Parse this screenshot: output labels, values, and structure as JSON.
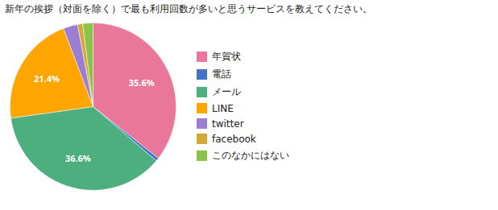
{
  "chart_data": {
    "type": "pie",
    "title": "新年の挨拶（対面を除く）で最も利用回数が多いと思うサービスを教えてください。",
    "categories": [
      "年賀状",
      "電話",
      "メール",
      "LINE",
      "twitter",
      "facebook",
      "このなかにはない"
    ],
    "values": [
      35.6,
      0.6,
      36.6,
      21.4,
      2.8,
      1.0,
      2.0
    ],
    "value_labels": [
      "35.6%",
      null,
      "36.6%",
      "21.4%",
      null,
      null,
      null
    ],
    "colors": [
      "#e8779a",
      "#4472c4",
      "#4caf7d",
      "#ffa500",
      "#9b7dd4",
      "#d4a832",
      "#8bc34a"
    ],
    "data_labels": true,
    "legend": "right"
  }
}
